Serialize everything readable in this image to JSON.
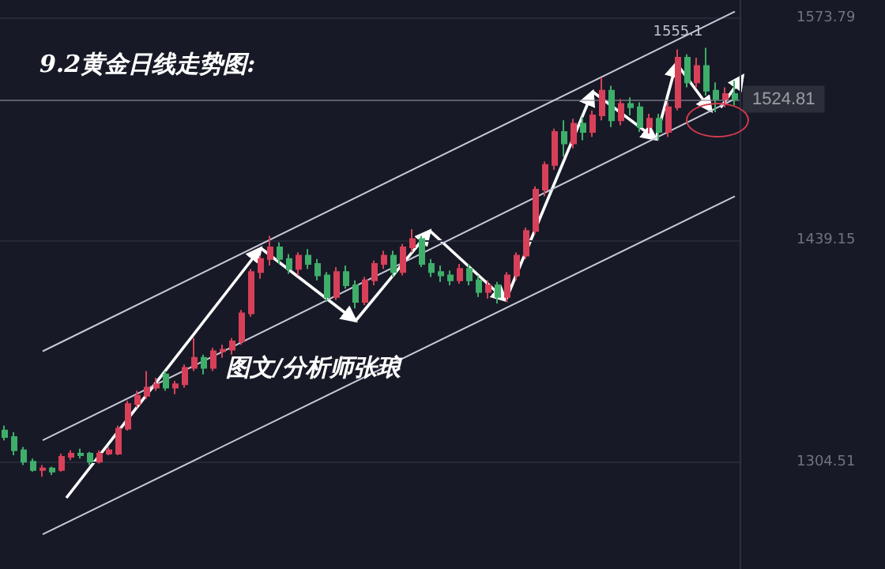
{
  "chart_data": {
    "type": "candlestick",
    "title": "9.2黄金日线走势图:",
    "annotations": [
      "图文/分析师张琅",
      {
        "text": "1555.1",
        "y": 1555.1
      }
    ],
    "categories": [
      null,
      null,
      null,
      null,
      null,
      null,
      null,
      null,
      null,
      null,
      null,
      null,
      null,
      null,
      null,
      null,
      null,
      null,
      null,
      null,
      null,
      null,
      null,
      null,
      null,
      null,
      null,
      null,
      null,
      null,
      null,
      null,
      null,
      null,
      null,
      null,
      null,
      null,
      null,
      null,
      null,
      null,
      null,
      null,
      null,
      null,
      null,
      null,
      null,
      null,
      null,
      null,
      null,
      null,
      null,
      null,
      null,
      null,
      null,
      null,
      null,
      null,
      null,
      null,
      null,
      null,
      null,
      null,
      null,
      null,
      null,
      null,
      null,
      null,
      null,
      null,
      null,
      null
    ],
    "ohlc": [
      [
        1324,
        1327,
        1318,
        1320
      ],
      [
        1320,
        1323,
        1309,
        1312
      ],
      [
        1312,
        1314,
        1303,
        1305
      ],
      [
        1305,
        1307,
        1299,
        1300
      ],
      [
        1300,
        1303,
        1296,
        1301
      ],
      [
        1301,
        1302,
        1297,
        1299
      ],
      [
        1300,
        1310,
        1299,
        1308
      ],
      [
        1308,
        1312,
        1306,
        1310
      ],
      [
        1310,
        1313,
        1307,
        1309
      ],
      [
        1310,
        1311,
        1303,
        1305
      ],
      [
        1305,
        1312,
        1304,
        1310
      ],
      [
        1310,
        1314,
        1309,
        1312
      ],
      [
        1310,
        1327,
        1309,
        1325
      ],
      [
        1325,
        1342,
        1324,
        1340
      ],
      [
        1340,
        1348,
        1338,
        1345
      ],
      [
        1345,
        1360,
        1343,
        1350
      ],
      [
        1350,
        1356,
        1348,
        1352
      ],
      [
        1358,
        1360,
        1348,
        1350
      ],
      [
        1350,
        1354,
        1346,
        1352
      ],
      [
        1352,
        1364,
        1350,
        1362
      ],
      [
        1362,
        1380,
        1360,
        1368
      ],
      [
        1368,
        1370,
        1358,
        1362
      ],
      [
        1362,
        1374,
        1360,
        1372
      ],
      [
        1372,
        1376,
        1368,
        1373
      ],
      [
        1373,
        1380,
        1370,
        1378
      ],
      [
        1378,
        1397,
        1376,
        1395
      ],
      [
        1395,
        1422,
        1393,
        1420
      ],
      [
        1420,
        1430,
        1416,
        1428
      ],
      [
        1428,
        1442,
        1424,
        1435
      ],
      [
        1435,
        1438,
        1425,
        1428
      ],
      [
        1428,
        1431,
        1419,
        1422
      ],
      [
        1422,
        1432,
        1418,
        1430
      ],
      [
        1430,
        1434,
        1422,
        1425
      ],
      [
        1425,
        1428,
        1415,
        1418
      ],
      [
        1418,
        1420,
        1402,
        1405
      ],
      [
        1405,
        1423,
        1403,
        1420
      ],
      [
        1420,
        1424,
        1410,
        1412
      ],
      [
        1412,
        1415,
        1398,
        1402
      ],
      [
        1402,
        1417,
        1400,
        1415
      ],
      [
        1415,
        1427,
        1412,
        1425
      ],
      [
        1425,
        1433,
        1422,
        1430
      ],
      [
        1430,
        1433,
        1417,
        1420
      ],
      [
        1420,
        1437,
        1418,
        1435
      ],
      [
        1435,
        1446,
        1432,
        1440
      ],
      [
        1440,
        1442,
        1423,
        1425
      ],
      [
        1425,
        1428,
        1417,
        1420
      ],
      [
        1420,
        1424,
        1414,
        1418
      ],
      [
        1418,
        1421,
        1412,
        1415
      ],
      [
        1415,
        1425,
        1413,
        1422
      ],
      [
        1422,
        1425,
        1412,
        1415
      ],
      [
        1415,
        1418,
        1405,
        1408
      ],
      [
        1408,
        1415,
        1404,
        1412
      ],
      [
        1412,
        1414,
        1401,
        1405
      ],
      [
        1405,
        1420,
        1402,
        1418
      ],
      [
        1418,
        1432,
        1415,
        1430
      ],
      [
        1430,
        1447,
        1428,
        1445
      ],
      [
        1445,
        1472,
        1443,
        1470
      ],
      [
        1470,
        1487,
        1466,
        1485
      ],
      [
        1485,
        1507,
        1482,
        1505
      ],
      [
        1505,
        1512,
        1490,
        1498
      ],
      [
        1498,
        1513,
        1495,
        1510
      ],
      [
        1510,
        1514,
        1500,
        1505
      ],
      [
        1505,
        1518,
        1502,
        1515
      ],
      [
        1515,
        1538,
        1512,
        1530
      ],
      [
        1530,
        1533,
        1508,
        1512
      ],
      [
        1512,
        1525,
        1509,
        1522
      ],
      [
        1522,
        1526,
        1515,
        1520
      ],
      [
        1520,
        1523,
        1505,
        1508
      ],
      [
        1508,
        1516,
        1504,
        1513
      ],
      [
        1513,
        1516,
        1500,
        1505
      ],
      [
        1505,
        1523,
        1502,
        1520
      ],
      [
        1520,
        1555.1,
        1518,
        1550
      ],
      [
        1550,
        1552,
        1532,
        1535
      ],
      [
        1535,
        1550,
        1532,
        1545
      ],
      [
        1545,
        1556,
        1527,
        1530
      ],
      [
        1530,
        1535,
        1517,
        1525
      ],
      [
        1525,
        1532,
        1520,
        1528
      ],
      [
        1528,
        1536,
        1521,
        1524.81
      ]
    ],
    "colors": [
      "#3fae6b",
      "#3fae6b",
      "#3fae6b",
      "#3fae6b",
      "#d8405a",
      "#3fae6b",
      "#d8405a",
      "#d8405a",
      "#3fae6b",
      "#3fae6b",
      "#d8405a",
      "#d8405a",
      "#d8405a",
      "#d8405a",
      "#d8405a",
      "#d8405a",
      "#d8405a",
      "#3fae6b",
      "#d8405a",
      "#d8405a",
      "#d8405a",
      "#3fae6b",
      "#d8405a",
      "#d8405a",
      "#d8405a",
      "#d8405a",
      "#d8405a",
      "#d8405a",
      "#d8405a",
      "#3fae6b",
      "#3fae6b",
      "#d8405a",
      "#3fae6b",
      "#3fae6b",
      "#3fae6b",
      "#d8405a",
      "#3fae6b",
      "#3fae6b",
      "#d8405a",
      "#d8405a",
      "#d8405a",
      "#3fae6b",
      "#d8405a",
      "#d8405a",
      "#3fae6b",
      "#3fae6b",
      "#3fae6b",
      "#3fae6b",
      "#d8405a",
      "#3fae6b",
      "#3fae6b",
      "#d8405a",
      "#3fae6b",
      "#d8405a",
      "#d8405a",
      "#d8405a",
      "#d8405a",
      "#d8405a",
      "#d8405a",
      "#3fae6b",
      "#d8405a",
      "#3fae6b",
      "#d8405a",
      "#d8405a",
      "#3fae6b",
      "#d8405a",
      "#3fae6b",
      "#3fae6b",
      "#d8405a",
      "#3fae6b",
      "#d8405a",
      "#d8405a",
      "#3fae6b",
      "#d8405a",
      "#3fae6b",
      "#3fae6b",
      "#d8405a",
      "#3fae6b"
    ],
    "series": [
      {
        "type": "line",
        "color": "#c8c8d8",
        "values": [
          null,
          null,
          null,
          null,
          1318,
          null,
          null,
          null,
          null,
          null,
          null,
          null,
          null,
          null,
          null,
          null,
          null,
          null,
          null,
          null,
          null,
          null,
          null,
          null,
          null,
          null,
          null,
          null,
          null,
          null,
          null,
          null,
          null,
          null,
          null,
          null,
          null,
          null,
          null,
          null,
          null,
          null,
          null,
          null,
          null,
          null,
          null,
          null,
          null,
          null,
          null,
          null,
          null,
          null,
          null,
          null,
          null,
          null,
          null,
          null,
          null,
          null,
          null,
          null,
          null,
          null,
          null,
          null,
          null,
          null,
          null,
          null,
          null,
          null,
          null,
          null,
          null,
          1525
        ]
      },
      {
        "type": "line",
        "color": "#c8c8d8",
        "values": [
          null,
          null,
          null,
          null,
          1261,
          null,
          null,
          null,
          null,
          null,
          null,
          null,
          null,
          null,
          null,
          null,
          null,
          null,
          null,
          null,
          null,
          null,
          null,
          null,
          null,
          null,
          null,
          null,
          null,
          null,
          null,
          null,
          null,
          null,
          null,
          null,
          null,
          null,
          null,
          null,
          null,
          null,
          null,
          null,
          null,
          null,
          null,
          null,
          null,
          null,
          null,
          null,
          null,
          null,
          null,
          null,
          null,
          null,
          null,
          null,
          null,
          null,
          null,
          null,
          null,
          null,
          null,
          null,
          null,
          null,
          null,
          null,
          null,
          null,
          null,
          null,
          null,
          1466
        ]
      },
      {
        "type": "line",
        "color": "#c8c8d8",
        "values": [
          null,
          null,
          null,
          null,
          1372,
          null,
          null,
          null,
          null,
          null,
          null,
          null,
          null,
          null,
          null,
          null,
          null,
          null,
          null,
          null,
          null,
          null,
          null,
          null,
          null,
          null,
          null,
          null,
          null,
          null,
          null,
          null,
          null,
          null,
          null,
          null,
          null,
          null,
          null,
          null,
          null,
          null,
          null,
          null,
          null,
          null,
          null,
          null,
          null,
          null,
          null,
          null,
          null,
          null,
          null,
          null,
          null,
          null,
          null,
          null,
          null,
          null,
          null,
          null,
          null,
          null,
          null,
          null,
          null,
          null,
          null,
          null,
          null,
          null,
          null,
          null,
          null,
          1578
        ]
      }
    ],
    "ylim": [
      1240,
      1585
    ],
    "yticks": [
      1304.51,
      1439.15,
      1573.79
    ],
    "ref_lines": [
      {
        "axis": "y",
        "value": 1524.81,
        "label": "1524.81",
        "color": "#8a8d99"
      }
    ],
    "tick_labels": "y",
    "grid": "y"
  }
}
